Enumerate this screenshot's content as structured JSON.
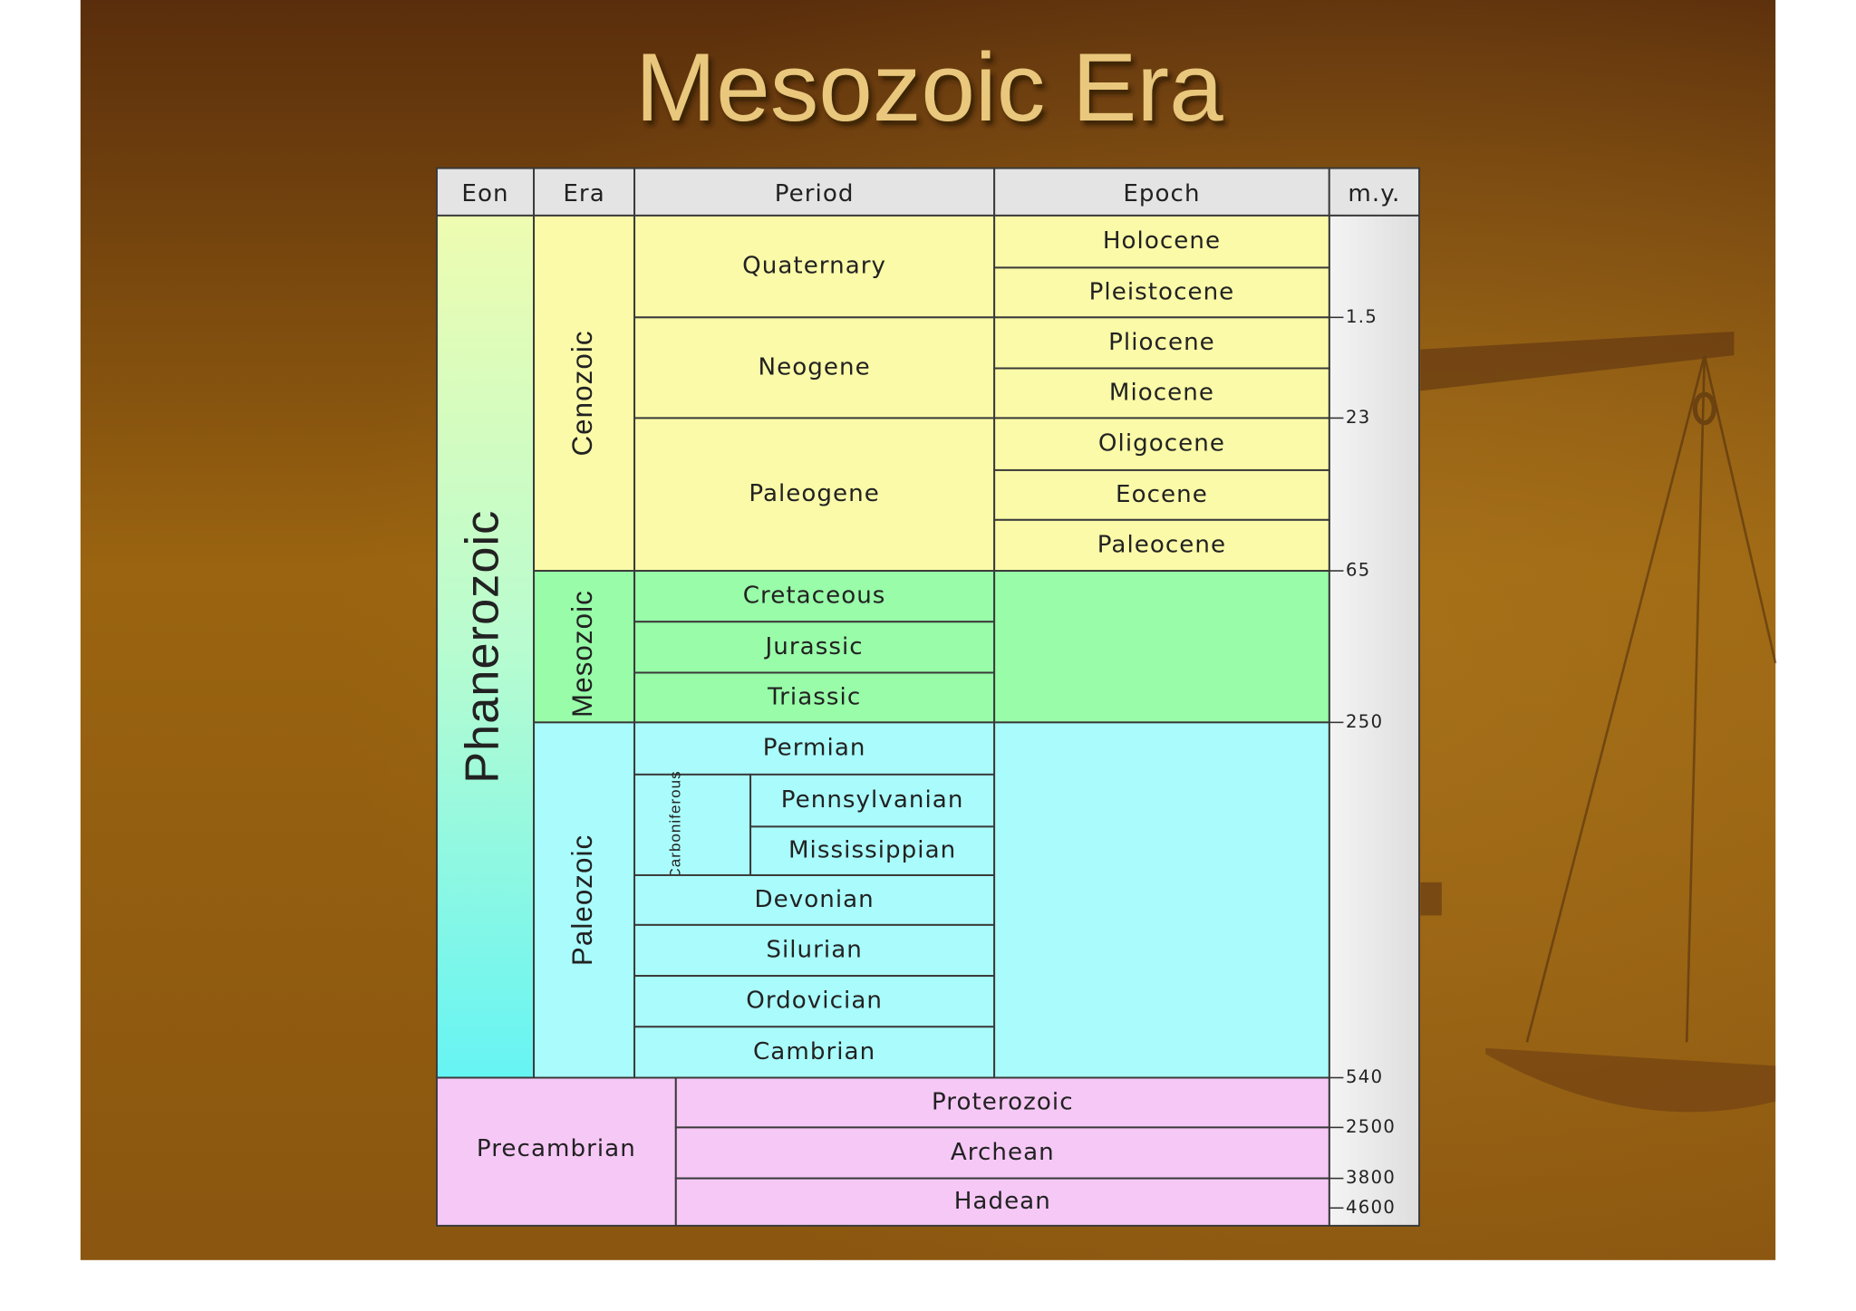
{
  "title": "Mesozoic Era",
  "table": {
    "headers": [
      "Eon",
      "Era",
      "Period",
      "Epoch",
      "m.y."
    ],
    "eons": [
      "Phanerozoic",
      "Precambrian"
    ],
    "eras": [
      "Cenozoic",
      "Mesozoic",
      "Paleozoic"
    ],
    "periods": [
      "Quaternary",
      "Neogene",
      "Paleogene",
      "Cretaceous",
      "Jurassic",
      "Triassic",
      "Permian",
      "Carboniferous",
      "Devonian",
      "Silurian",
      "Ordovician",
      "Cambrian"
    ],
    "subperiods": [
      "Pennsylvanian",
      "Mississippian"
    ],
    "epochs": [
      "Holocene",
      "Pleistocene",
      "Pliocene",
      "Miocene",
      "Oligocene",
      "Eocene",
      "Paleocene"
    ],
    "precambrian_eons": [
      "Proterozoic",
      "Archean",
      "Hadean"
    ],
    "my": [
      "1.5",
      "23",
      "65",
      "250",
      "540",
      "2500",
      "3800",
      "4600"
    ]
  }
}
